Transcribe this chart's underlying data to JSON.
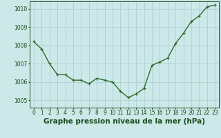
{
  "x": [
    0,
    1,
    2,
    3,
    4,
    5,
    6,
    7,
    8,
    9,
    10,
    11,
    12,
    13,
    14,
    15,
    16,
    17,
    18,
    19,
    20,
    21,
    22,
    23
  ],
  "y": [
    1008.2,
    1007.8,
    1007.0,
    1006.4,
    1006.4,
    1006.1,
    1006.1,
    1005.9,
    1006.2,
    1006.1,
    1006.0,
    1005.5,
    1005.15,
    1005.35,
    1005.65,
    1006.9,
    1007.1,
    1007.3,
    1008.1,
    1008.65,
    1009.3,
    1009.6,
    1010.1,
    1010.2
  ],
  "line_color": "#2d6a2d",
  "marker_color": "#2d6a2d",
  "bg_color": "#cce8e8",
  "grid_color": "#aacccc",
  "xlabel": "Graphe pression niveau de la mer (hPa)",
  "xlabel_color": "#1a4a1a",
  "yticks": [
    1005,
    1006,
    1007,
    1008,
    1009,
    1010
  ],
  "xticks": [
    0,
    1,
    2,
    3,
    4,
    5,
    6,
    7,
    8,
    9,
    10,
    11,
    12,
    13,
    14,
    15,
    16,
    17,
    18,
    19,
    20,
    21,
    22,
    23
  ],
  "ylim": [
    1004.6,
    1010.4
  ],
  "xlim": [
    -0.5,
    23.5
  ],
  "tick_color": "#1a4a1a",
  "tick_fontsize": 5.5,
  "xlabel_fontsize": 7.5,
  "linewidth": 1.0,
  "markersize": 3.5
}
